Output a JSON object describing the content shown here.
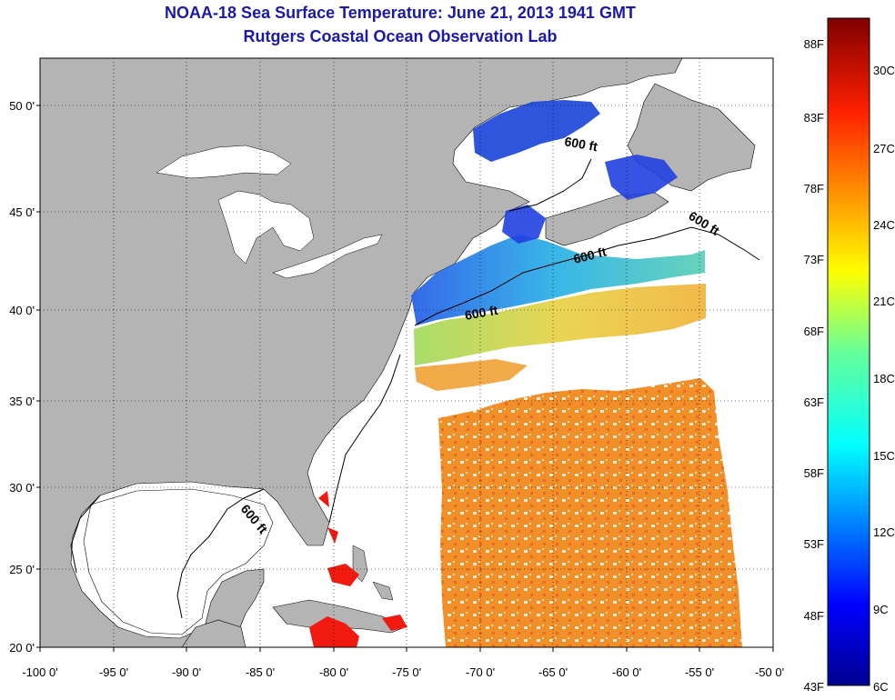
{
  "title": "NOAA-18 Sea Surface Temperature:  June 21, 2013 1941 GMT",
  "subtitle": "Rutgers Coastal Ocean Observation Lab",
  "lat_labels": [
    "50 0'",
    "45 0'",
    "40 0'",
    "35 0'",
    "30 0'",
    "25 0'",
    "20 0'"
  ],
  "lon_labels": [
    "-100 0'",
    "-95 0'",
    "-90 0'",
    "-85 0'",
    "-80 0'",
    "-75 0'",
    "-70 0'",
    "-65 0'",
    "-60 0'",
    "-55 0'",
    "-50 0'"
  ],
  "isobath_label": "600 ft",
  "colorbar": {
    "fahrenheit_labels": [
      "88F",
      "83F",
      "78F",
      "73F",
      "68F",
      "63F",
      "58F",
      "53F",
      "48F",
      "43F"
    ],
    "celsius_labels": [
      "30C",
      "27C",
      "24C",
      "21C",
      "18C",
      "15C",
      "12C",
      "9C",
      "6C"
    ]
  },
  "colors": {
    "land": "#b4b4b4",
    "title": "#1a1aa6"
  }
}
